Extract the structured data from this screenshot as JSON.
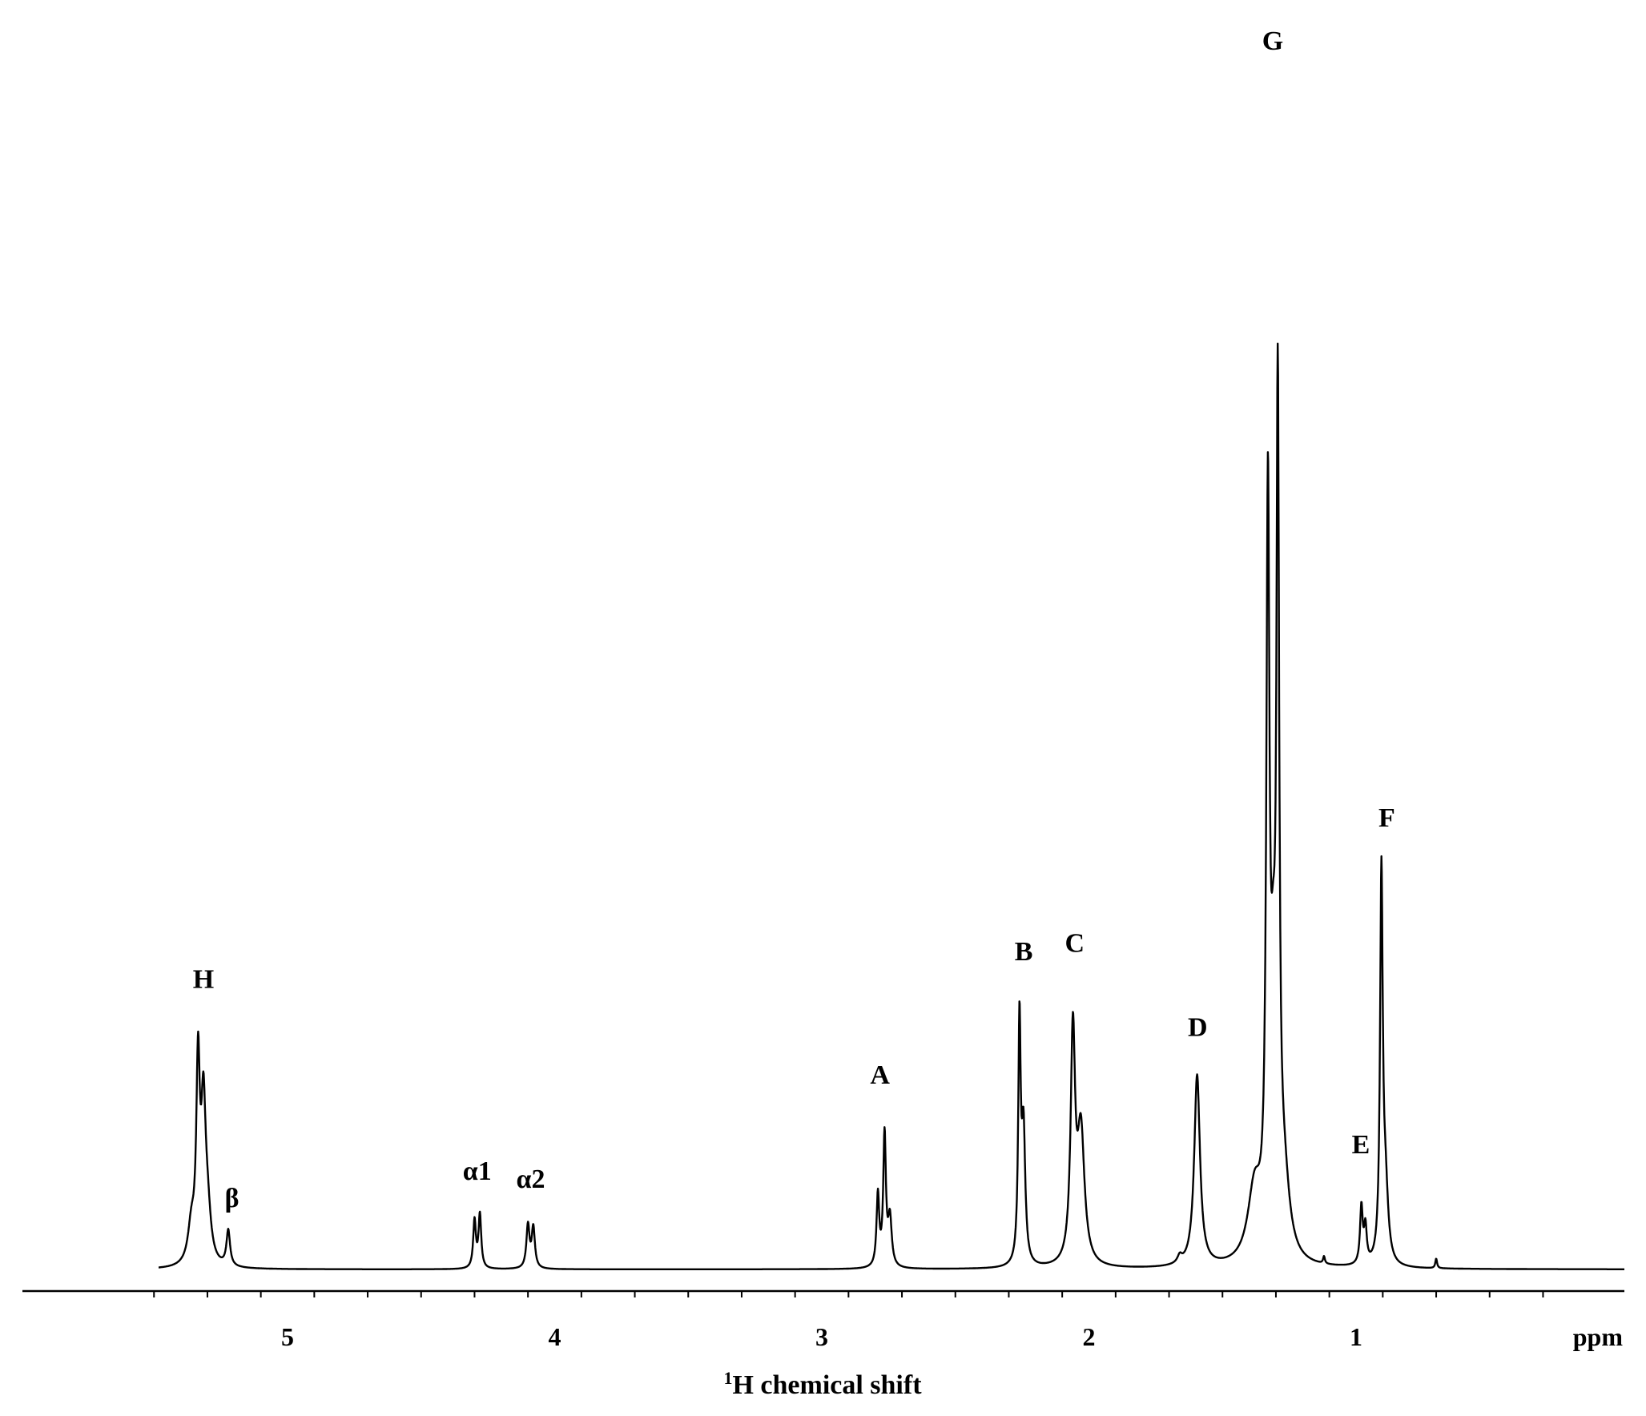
{
  "chart_data": {
    "type": "line",
    "title": "",
    "xlabel": "¹H chemical shift",
    "xlabel_sup": "1",
    "xlabel_main": "H chemical shift",
    "x_unit": "ppm",
    "xlim": [
      5.5,
      0.2
    ],
    "x_reversed": true,
    "x_ticks": [
      5,
      4,
      3,
      2,
      1
    ],
    "x_tick_labels": [
      "5",
      "4",
      "3",
      "2",
      "1"
    ],
    "minor_tick_step": 0.2,
    "y_axis_shown": false,
    "grid": false,
    "legend": "none",
    "peaks": [
      {
        "label": "H",
        "ppm": 5.33,
        "height": 0.215
      },
      {
        "label": "β",
        "ppm": 5.22,
        "height": 0.032
      },
      {
        "label": "α1",
        "ppm": 4.29,
        "height": 0.055
      },
      {
        "label": "α2",
        "ppm": 4.09,
        "height": 0.048
      },
      {
        "label": "A",
        "ppm": 2.77,
        "height": 0.135
      },
      {
        "label": "B",
        "ppm": 2.25,
        "height": 0.238
      },
      {
        "label": "C",
        "ppm": 2.05,
        "height": 0.245
      },
      {
        "label": "D",
        "ppm": 1.59,
        "height": 0.175
      },
      {
        "label": "G",
        "ppm": 1.3,
        "height": 1.0
      },
      {
        "label": "E",
        "ppm": 0.97,
        "height": 0.077
      },
      {
        "label": "F",
        "ppm": 0.9,
        "height": 0.35
      }
    ],
    "line_color": "#000000"
  }
}
